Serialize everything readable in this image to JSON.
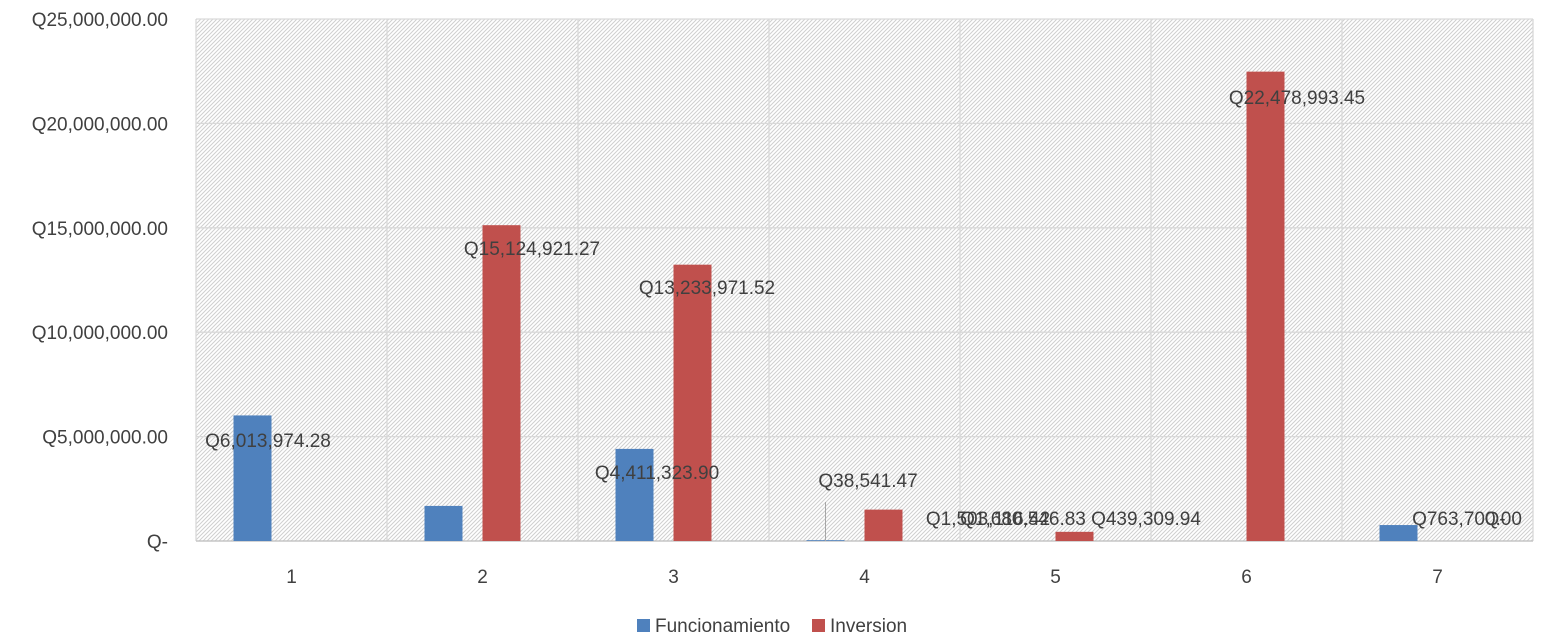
{
  "chart_data": {
    "type": "bar",
    "title": "",
    "xlabel": "",
    "ylabel": "",
    "categories": [
      "1",
      "2",
      "3",
      "4",
      "5",
      "6",
      "7"
    ],
    "ylim": [
      0,
      25000000
    ],
    "y_ticks": [
      0,
      5000000,
      10000000,
      15000000,
      20000000,
      25000000
    ],
    "y_tick_labels": [
      "Q-",
      "Q5,000,000.00",
      "Q10,000,000.00",
      "Q15,000,000.00",
      "Q20,000,000.00",
      "Q25,000,000.00"
    ],
    "grid": true,
    "legend_position": "bottom",
    "series": [
      {
        "name": "Funcionamiento",
        "color": "#4F81BD",
        "values": [
          6013974.28,
          1680546.83,
          4411323.9,
          38541.47,
          0,
          0,
          763700.0
        ],
        "labels": [
          "Q6,013,974.28",
          "Q1,680,546.83",
          "Q4,411,323.90",
          "Q38,541.47",
          "",
          "",
          "Q763,700.00"
        ]
      },
      {
        "name": "Inversion",
        "color": "#C0504D",
        "values": [
          0,
          15124921.27,
          13233971.52,
          1503116.42,
          439309.94,
          22478993.45,
          0
        ],
        "labels": [
          "",
          "Q15,124,921.27",
          "Q13,233,971.52",
          "Q1,503,116.42",
          "Q439,309.94",
          "Q22,478,993.45",
          "Q-"
        ]
      }
    ]
  }
}
